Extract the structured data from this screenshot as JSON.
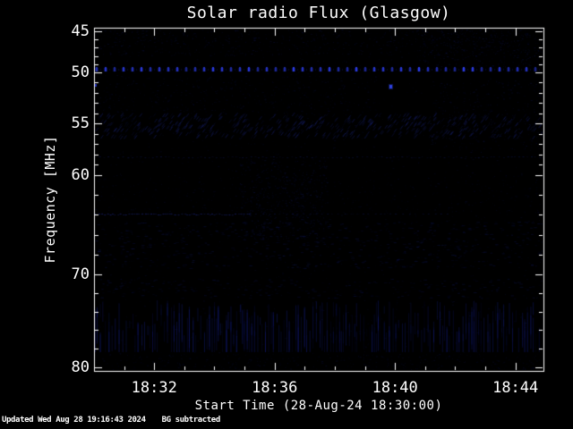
{
  "chart_data": {
    "type": "heatmap",
    "subtype": "solar-radio-spectrogram",
    "title": "Solar radio Flux (Glasgow)",
    "xlabel": "Start Time (28-Aug-24 18:30:00)",
    "ylabel": "Frequency [MHz]",
    "x_start": "18:30",
    "x_end": "18:45",
    "x_tick_labels": [
      "18:32",
      "18:36",
      "18:40",
      "18:44"
    ],
    "x_minor_tick_minutes": 1,
    "y_tick_labels": [
      "45",
      "50",
      "55",
      "60",
      "70",
      "80"
    ],
    "y_tick_values": [
      45,
      50,
      55,
      60,
      70,
      80
    ],
    "y_axis_inverted": true,
    "grid": false,
    "legend": "none",
    "palette": "black background with faint dark-blue noise (background-subtracted intensity)",
    "features": [
      {
        "type": "dotted-horizontal-line",
        "frequency_mhz": 49.5,
        "time_span": [
          "18:30",
          "18:45"
        ],
        "description": "persistent narrowband RFI drawn as regularly spaced bright blue dots across full width"
      },
      {
        "type": "point",
        "time": "18:39:50",
        "frequency_mhz": 51.5,
        "description": "single isolated bright blue pixel"
      },
      {
        "type": "point",
        "time": "18:30:00",
        "frequency_mhz": 51.5,
        "description": "small blue dash at left plot edge"
      },
      {
        "type": "faint-band",
        "frequency_span_mhz": [
          55,
          57
        ],
        "time_span": [
          "18:30",
          "18:45"
        ],
        "description": "weak diagonally textured interference band"
      },
      {
        "type": "faint-line",
        "frequency_mhz": 58.5,
        "time_span": [
          "18:30",
          "18:45"
        ],
        "description": "very weak dotted horizontal line"
      },
      {
        "type": "faint-line",
        "frequency_mhz": 64.5,
        "time_span": [
          "18:30",
          "18:35"
        ],
        "description": "weak horizontal line, strongest on left half"
      },
      {
        "type": "noise-band",
        "frequency_span_mhz": [
          73,
          78
        ],
        "time_span": [
          "18:30",
          "18:45"
        ],
        "description": "band of faint vertical striping across full width"
      }
    ]
  },
  "footer": {
    "updated": "Updated Wed Aug 28 19:16:43 2024",
    "note": "BG subtracted"
  },
  "colors": {
    "background": "#000000",
    "axis": "#ffffff",
    "text": "#ffffff",
    "rfi_line": "#2b3ce0",
    "noise_tint": "#141f78"
  }
}
